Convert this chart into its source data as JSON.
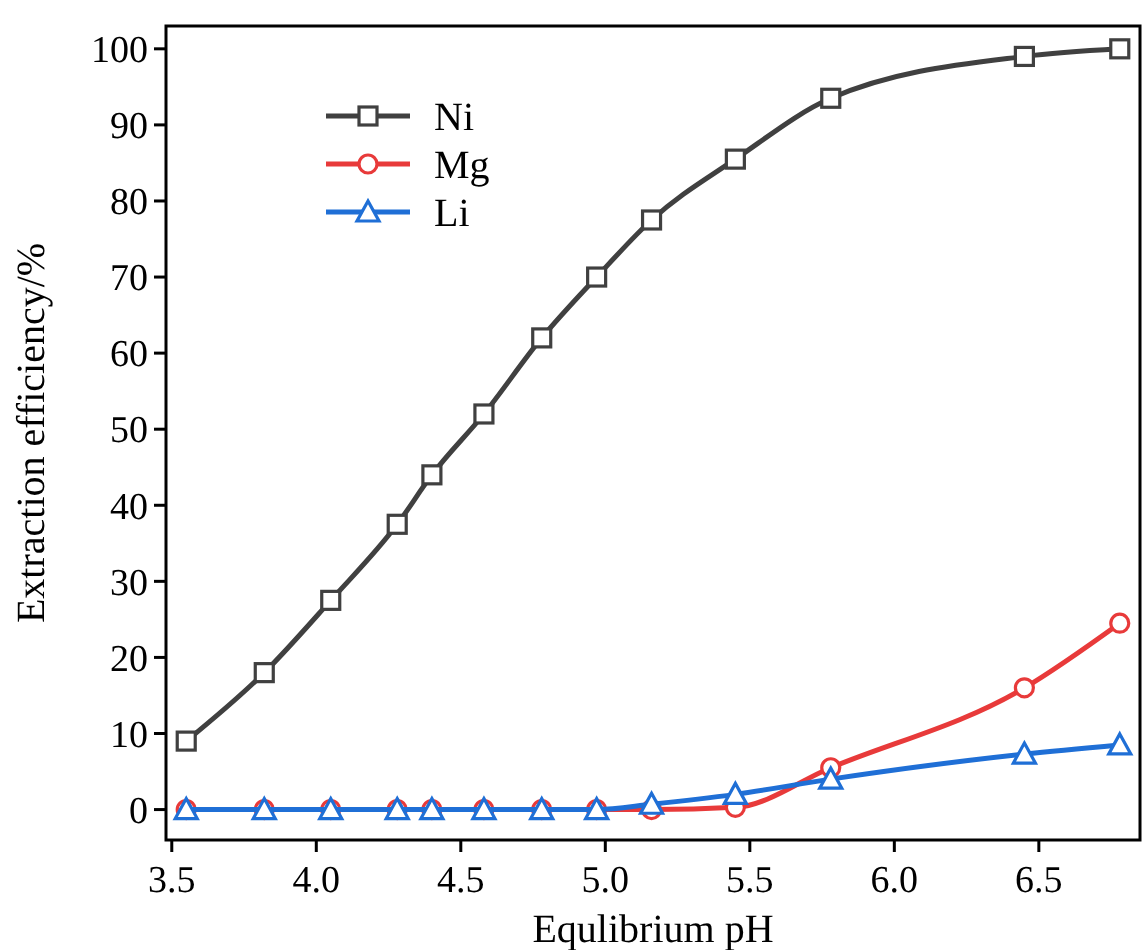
{
  "chart_data": {
    "type": "line",
    "xlabel": "Equlibrium pH",
    "ylabel": "Extraction efficiency/%",
    "xlim": [
      3.48,
      6.85
    ],
    "xticks": [
      {
        "value": 3.5,
        "label": "3.5"
      },
      {
        "value": 4,
        "label": "4.0"
      },
      {
        "value": 4.5,
        "label": "4.5"
      },
      {
        "value": 5,
        "label": "5.0"
      },
      {
        "value": 5.5,
        "label": "5.5"
      },
      {
        "value": 6,
        "label": "6.0"
      },
      {
        "value": 6.5,
        "label": "6.5"
      }
    ],
    "ylim": [
      -4,
      103
    ],
    "yticks": [
      0,
      10,
      20,
      30,
      40,
      50,
      60,
      70,
      80,
      90,
      100
    ],
    "x": [
      3.55,
      3.82,
      4.05,
      4.28,
      4.4,
      4.58,
      4.78,
      4.97,
      5.16,
      5.45,
      5.78,
      6.45,
      6.78
    ],
    "legend": "top left",
    "grid": false,
    "line_style": "solid",
    "series": [
      {
        "name": "Ni",
        "color": "#404040",
        "marker": "square",
        "values": [
          9,
          18,
          27.5,
          37.5,
          44,
          52,
          62,
          70,
          77.5,
          85.5,
          93.5,
          99,
          100
        ]
      },
      {
        "name": "Mg",
        "color": "#e83a3a",
        "marker": "circle",
        "values": [
          0,
          0,
          0,
          0,
          0,
          0,
          0,
          0,
          0,
          0.3,
          5.5,
          16,
          24.5
        ]
      },
      {
        "name": "Li",
        "color": "#1f6fd6",
        "marker": "triangle",
        "values": [
          0,
          0,
          0,
          0,
          0,
          0,
          0,
          0,
          0.7,
          2,
          4,
          7.3,
          8.5
        ]
      }
    ]
  }
}
